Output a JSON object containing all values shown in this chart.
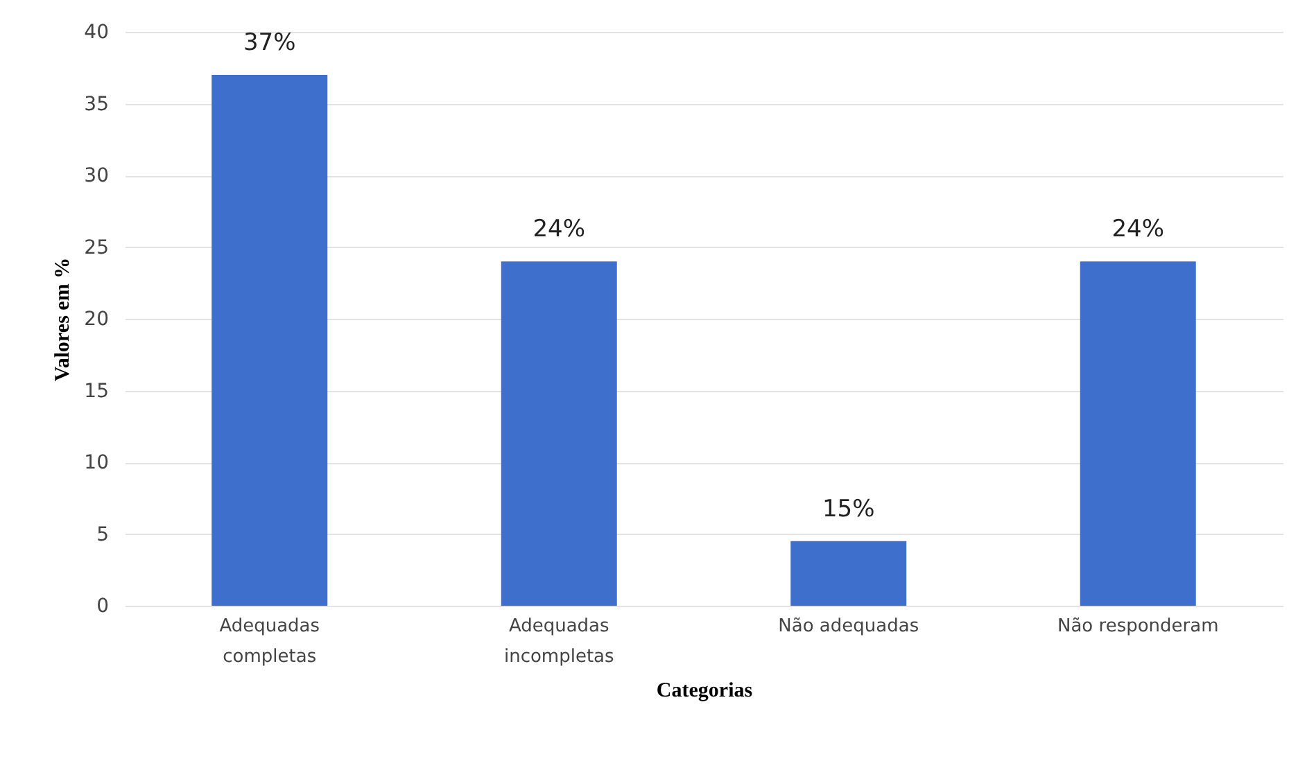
{
  "chart_data": {
    "type": "bar",
    "xlabel": "Categorias",
    "ylabel": "Valores em %",
    "categories": [
      "Adequadas\ncompletas",
      "Adequadas\nincompletas",
      "Não adequadas",
      "Não responderam"
    ],
    "values": [
      37,
      24,
      4.5,
      24
    ],
    "value_labels": [
      "37%",
      "24%",
      null,
      "24%"
    ],
    "annotations": [
      {
        "text": "15%",
        "x": "Não adequadas",
        "y": 4.5
      }
    ],
    "color": "#3f6fcc",
    "ylim": [
      0,
      40
    ],
    "yticks": [
      0,
      5,
      10,
      15,
      20,
      25,
      30,
      35,
      40
    ],
    "grid": "y"
  }
}
